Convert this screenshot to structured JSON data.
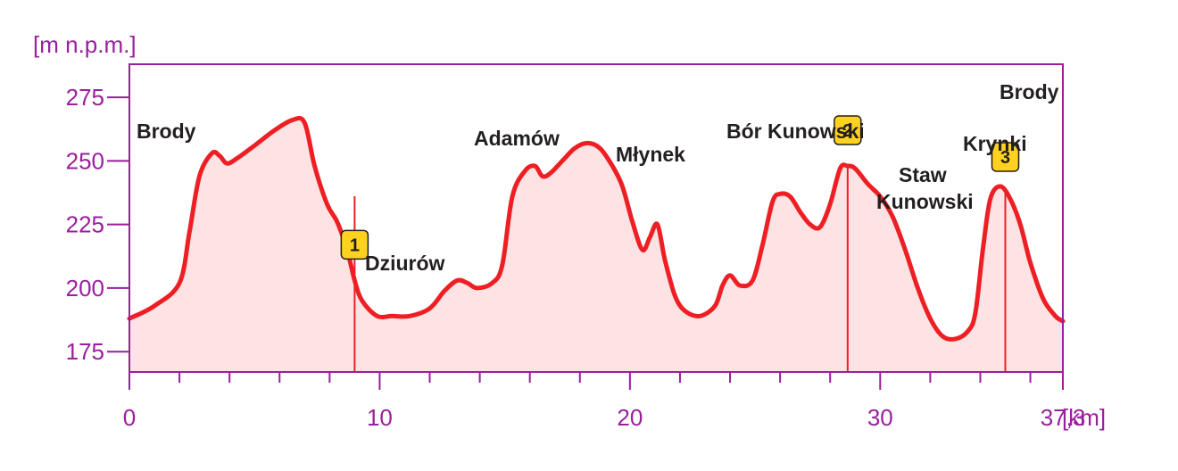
{
  "colors": {
    "axis": "#9a1f9c",
    "line": "#ee1f24",
    "fill": "#fde3e3",
    "marker_fill": "#ffd21f",
    "text": "#231f20"
  },
  "chart_data": {
    "type": "area",
    "ylabel": "[m n.p.m.]",
    "xunit": "[km]",
    "xlim": [
      0,
      37.3
    ],
    "ylim": [
      167,
      288
    ],
    "y_ticks": [
      "175",
      "200",
      "225",
      "250",
      "275"
    ],
    "x_ticks": [
      "0",
      "10",
      "20",
      "30",
      "37,3"
    ],
    "x": [
      0,
      1.0,
      2.0,
      2.4,
      2.8,
      3.3,
      3.6,
      3.9,
      4.3,
      5.0,
      5.8,
      6.5,
      7.0,
      7.4,
      7.9,
      8.3,
      8.7,
      9.0,
      9.3,
      9.9,
      10.5,
      11.2,
      12.0,
      12.6,
      13.1,
      13.5,
      13.9,
      14.5,
      14.9,
      15.3,
      15.8,
      16.2,
      16.5,
      16.8,
      17.3,
      17.8,
      18.3,
      18.8,
      19.3,
      19.7,
      20.1,
      20.5,
      20.8,
      21.1,
      21.4,
      21.8,
      22.2,
      22.8,
      23.4,
      23.7,
      24.0,
      24.4,
      24.9,
      25.3,
      25.7,
      26.0,
      26.4,
      26.8,
      27.2,
      27.6,
      28.0,
      28.4,
      28.7,
      29.0,
      29.5,
      30.0,
      30.5,
      31.0,
      31.5,
      32.0,
      32.5,
      33.0,
      33.5,
      33.8,
      34.1,
      34.4,
      34.8,
      35.2,
      35.6,
      36.0,
      36.5,
      37.0,
      37.3
    ],
    "y": [
      188,
      193,
      202,
      222,
      244,
      253,
      252,
      249,
      251,
      256,
      262,
      266,
      265,
      248,
      233,
      226,
      215,
      203,
      195,
      189,
      189,
      189,
      192,
      199,
      203,
      202,
      200,
      202,
      209,
      236,
      246,
      248,
      244,
      245,
      250,
      255,
      257,
      255,
      248,
      240,
      226,
      215,
      220,
      225,
      211,
      197,
      191,
      189,
      193,
      201,
      205,
      201,
      203,
      217,
      234,
      237,
      236,
      230,
      225,
      224,
      233,
      247,
      248,
      247,
      241,
      236,
      228,
      215,
      200,
      188,
      181,
      180,
      183,
      190,
      215,
      235,
      240,
      235,
      225,
      210,
      196,
      189,
      187
    ],
    "places": [
      "Brody",
      "Dziurów",
      "Adamów",
      "Młynek",
      "Bór Kunowski",
      "Staw",
      "Kunowski",
      "Krynki",
      "Brody"
    ],
    "markers": [
      {
        "label": "1",
        "x": 9.0
      },
      {
        "label": "2",
        "x": 28.7
      },
      {
        "label": "3",
        "x": 35.0
      }
    ]
  }
}
